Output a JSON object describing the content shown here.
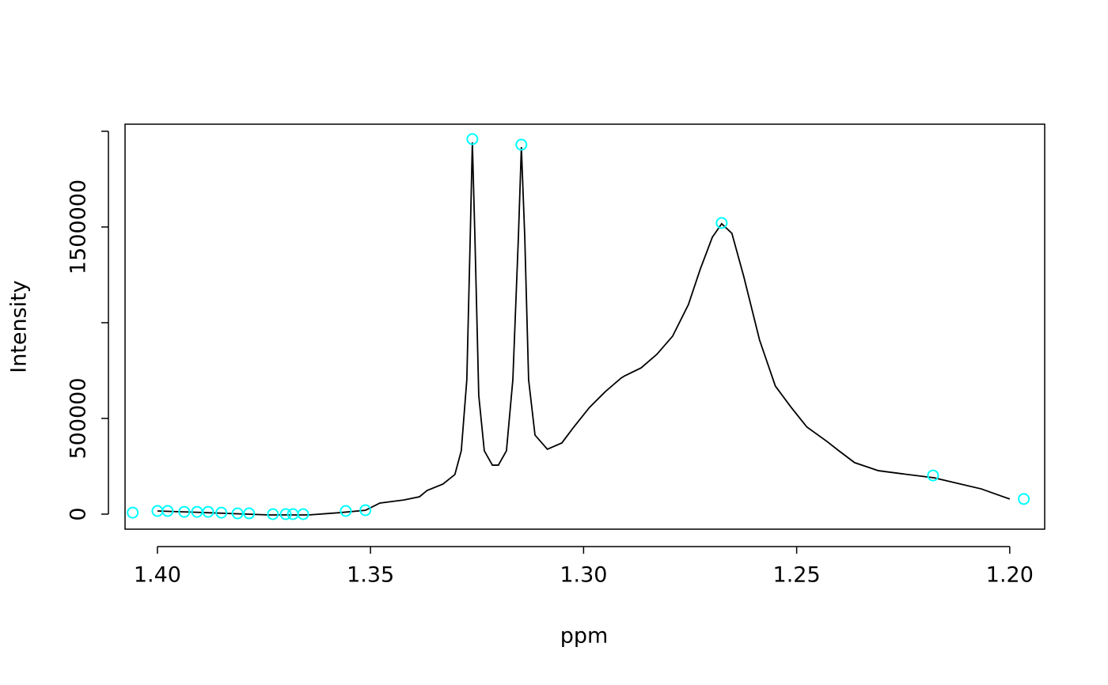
{
  "chart_data": {
    "type": "line",
    "xlabel": "ppm",
    "ylabel": "Intensity",
    "xlim": [
      1.4076,
      1.1918
    ],
    "ylim": [
      -78500,
      2037000
    ],
    "xticks": [
      {
        "value": 1.4,
        "label": "1.40"
      },
      1.35,
      {
        "value": 1.3,
        "label": "1.30"
      },
      1.25,
      {
        "value": 1.2,
        "label": "1.20"
      }
    ],
    "yticks": [
      0,
      500000,
      {
        "value": 1000000
      },
      1500000,
      {
        "value": 2000000
      }
    ],
    "series": [
      {
        "style": "line",
        "color": "#000000",
        "x": [
          1.4,
          1.3887,
          1.3738,
          1.3645,
          1.3571,
          1.3512,
          1.3478,
          1.3422,
          1.3385,
          1.3367,
          1.333,
          1.3302,
          1.3287,
          1.3274,
          1.3266,
          1.3261,
          1.3255,
          1.3246,
          1.3233,
          1.3214,
          1.32,
          1.3181,
          1.3166,
          1.3153,
          1.3146,
          1.3138,
          1.3129,
          1.3114,
          1.3085,
          1.3051,
          1.3023,
          1.2986,
          1.2949,
          1.2912,
          1.2903,
          1.2865,
          1.2828,
          1.2791,
          1.2754,
          1.2726,
          1.2698,
          1.2676,
          1.2652,
          1.2624,
          1.2587,
          1.255,
          1.2513,
          1.2476,
          1.2429,
          1.2401,
          1.2364,
          1.2308,
          1.2253,
          1.2178,
          1.2123,
          1.2067,
          1.2
        ],
        "values": [
          16500,
          8000,
          -4000,
          -4000,
          8000,
          20000,
          58000,
          74000,
          91000,
          124000,
          157000,
          207000,
          331000,
          702000,
          1446000,
          1942000,
          1446000,
          620000,
          331000,
          256000,
          256000,
          331000,
          702000,
          1446000,
          1917000,
          1446000,
          702000,
          413000,
          339000,
          372000,
          455000,
          558000,
          640000,
          711000,
          723000,
          764000,
          835000,
          930000,
          1095000,
          1281000,
          1446000,
          1517000,
          1467000,
          1240000,
          909000,
          669000,
          558000,
          455000,
          380000,
          331000,
          269000,
          227000,
          211000,
          190000,
          161000,
          132000,
          79000
        ]
      },
      {
        "style": "points",
        "color": "#00ffff",
        "x": [
          1.4058,
          1.4,
          1.3976,
          1.3937,
          1.3907,
          1.3881,
          1.385,
          1.3812,
          1.3785,
          1.3729,
          1.3699,
          1.3682,
          1.3658,
          1.3558,
          1.3512,
          1.3261,
          1.3146,
          1.2676,
          1.218,
          1.1967
        ],
        "values": [
          8000,
          16500,
          16500,
          12000,
          12000,
          12000,
          8000,
          4000,
          4000,
          0,
          0,
          0,
          0,
          16500,
          20700,
          1959000,
          1930000,
          1521000,
          202000,
          79000
        ]
      }
    ]
  }
}
